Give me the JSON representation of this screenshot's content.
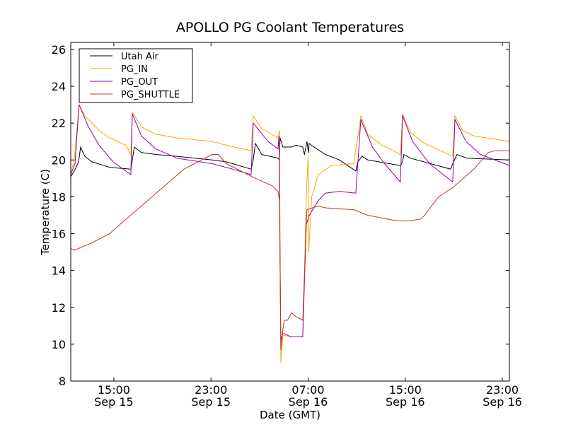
{
  "chart_data": {
    "type": "line",
    "title": "APOLLO PG Coolant Temperatures",
    "xlabel": "Date (GMT)",
    "ylabel": "Temperature (C)",
    "x_units": "hours since Sep 15 00:00 GMT",
    "xlim": [
      11.45,
      47.58
    ],
    "ylim": [
      8,
      26.38
    ],
    "grid": false,
    "legend_position": "top-left",
    "xticks": [
      {
        "value": 15,
        "line1": "15:00",
        "line2": "Sep 15"
      },
      {
        "value": 23,
        "line1": "23:00",
        "line2": "Sep 15"
      },
      {
        "value": 31,
        "line1": "07:00",
        "line2": "Sep 16"
      },
      {
        "value": 39,
        "line1": "15:00",
        "line2": "Sep 16"
      },
      {
        "value": 47,
        "line1": "23:00",
        "line2": "Sep 16"
      }
    ],
    "yticks": [
      8,
      10,
      12,
      14,
      16,
      18,
      20,
      22,
      24,
      26
    ],
    "series": [
      {
        "name": "Utah Air",
        "color": "#000000",
        "points": [
          [
            11.45,
            19.1
          ],
          [
            11.74,
            19.4
          ],
          [
            12.03,
            19.8
          ],
          [
            12.14,
            20.1
          ],
          [
            12.26,
            20.7
          ],
          [
            12.61,
            20.2
          ],
          [
            13.19,
            19.9
          ],
          [
            14.65,
            19.6
          ],
          [
            16.4,
            19.5
          ],
          [
            16.52,
            20.0
          ],
          [
            16.69,
            20.7
          ],
          [
            17.27,
            20.4
          ],
          [
            18.44,
            20.3
          ],
          [
            20.19,
            20.2
          ],
          [
            23.1,
            20.0
          ],
          [
            24.27,
            19.9
          ],
          [
            26.31,
            19.5
          ],
          [
            26.48,
            20.0
          ],
          [
            26.66,
            20.9
          ],
          [
            27.18,
            20.3
          ],
          [
            28.52,
            20.1
          ],
          [
            28.64,
            20.0
          ],
          [
            28.69,
            21.2
          ],
          [
            28.92,
            20.7
          ],
          [
            29.6,
            20.7
          ],
          [
            30.0,
            20.8
          ],
          [
            30.56,
            20.7
          ],
          [
            30.7,
            20.3
          ],
          [
            30.91,
            21.0
          ],
          [
            31.03,
            20.4
          ],
          [
            31.08,
            20.9
          ],
          [
            31.26,
            20.8
          ],
          [
            32.42,
            20.3
          ],
          [
            33.59,
            20.0
          ],
          [
            34.93,
            19.4
          ],
          [
            35.1,
            19.9
          ],
          [
            35.45,
            20.2
          ],
          [
            35.92,
            20.0
          ],
          [
            38.6,
            19.7
          ],
          [
            38.78,
            19.9
          ],
          [
            38.89,
            20.3
          ],
          [
            39.42,
            20.1
          ],
          [
            42.74,
            19.5
          ],
          [
            42.91,
            19.8
          ],
          [
            43.26,
            20.3
          ],
          [
            44.08,
            20.1
          ],
          [
            47.58,
            20.0
          ]
        ]
      },
      {
        "name": "PG_IN",
        "color": "#ffa500",
        "points": [
          [
            11.45,
            19.3
          ],
          [
            11.74,
            20.0
          ],
          [
            12.14,
            23.0
          ],
          [
            12.6,
            22.4
          ],
          [
            13.19,
            22.0
          ],
          [
            13.78,
            21.6
          ],
          [
            14.65,
            21.2
          ],
          [
            16.0,
            20.8
          ],
          [
            16.4,
            20.3
          ],
          [
            16.52,
            22.6
          ],
          [
            17.27,
            21.8
          ],
          [
            18.44,
            21.4
          ],
          [
            20.19,
            21.2
          ],
          [
            23.1,
            21.0
          ],
          [
            24.27,
            20.8
          ],
          [
            26.31,
            20.5
          ],
          [
            26.48,
            22.4
          ],
          [
            27.18,
            21.7
          ],
          [
            28.52,
            21.2
          ],
          [
            28.64,
            21.6
          ],
          [
            28.75,
            9.0
          ],
          [
            28.92,
            10.5
          ],
          [
            29.6,
            10.4
          ],
          [
            30.56,
            10.4
          ],
          [
            30.85,
            18.0
          ],
          [
            31.0,
            20.2
          ],
          [
            31.05,
            15.0
          ],
          [
            31.3,
            18.0
          ],
          [
            31.84,
            19.2
          ],
          [
            32.9,
            19.7
          ],
          [
            34.76,
            19.8
          ],
          [
            35.34,
            22.4
          ],
          [
            35.92,
            21.4
          ],
          [
            37.09,
            20.8
          ],
          [
            38.6,
            20.3
          ],
          [
            38.78,
            22.5
          ],
          [
            39.42,
            21.5
          ],
          [
            40.58,
            20.9
          ],
          [
            42.91,
            20.2
          ],
          [
            43.09,
            22.4
          ],
          [
            43.7,
            21.6
          ],
          [
            44.66,
            21.3
          ],
          [
            47.58,
            21.0
          ]
        ]
      },
      {
        "name": "PG_OUT",
        "color": "#9400a0",
        "points": [
          [
            11.45,
            19.2
          ],
          [
            11.8,
            19.8
          ],
          [
            12.14,
            23.0
          ],
          [
            12.9,
            21.8
          ],
          [
            13.78,
            20.8
          ],
          [
            14.94,
            19.9
          ],
          [
            16.4,
            19.2
          ],
          [
            16.52,
            22.5
          ],
          [
            17.27,
            21.3
          ],
          [
            18.44,
            20.6
          ],
          [
            20.19,
            20.1
          ],
          [
            23.1,
            19.8
          ],
          [
            24.8,
            19.5
          ],
          [
            26.31,
            19.2
          ],
          [
            26.48,
            22.0
          ],
          [
            27.7,
            21.0
          ],
          [
            28.52,
            20.6
          ],
          [
            28.6,
            21.3
          ],
          [
            28.75,
            10.2
          ],
          [
            28.92,
            10.6
          ],
          [
            29.6,
            10.4
          ],
          [
            30.56,
            10.4
          ],
          [
            30.85,
            16.5
          ],
          [
            31.1,
            17.0
          ],
          [
            31.84,
            17.8
          ],
          [
            32.42,
            18.2
          ],
          [
            33.59,
            18.3
          ],
          [
            34.93,
            18.2
          ],
          [
            35.34,
            22.2
          ],
          [
            36.3,
            20.7
          ],
          [
            37.3,
            19.8
          ],
          [
            38.6,
            18.8
          ],
          [
            38.78,
            22.4
          ],
          [
            39.6,
            21.0
          ],
          [
            41.0,
            19.8
          ],
          [
            42.91,
            18.8
          ],
          [
            43.09,
            22.2
          ],
          [
            44.0,
            21.0
          ],
          [
            45.2,
            20.3
          ],
          [
            47.58,
            19.7
          ]
        ]
      },
      {
        "name": "PG_SHUTTLE",
        "color": "#c0392b",
        "points": [
          [
            11.45,
            15.2
          ],
          [
            11.74,
            15.1
          ],
          [
            13.19,
            15.5
          ],
          [
            14.65,
            16.0
          ],
          [
            15.5,
            16.5
          ],
          [
            17.27,
            17.5
          ],
          [
            20.77,
            19.5
          ],
          [
            23.1,
            20.3
          ],
          [
            23.6,
            20.3
          ],
          [
            24.27,
            19.8
          ],
          [
            26.66,
            19.0
          ],
          [
            28.05,
            18.6
          ],
          [
            28.52,
            18.3
          ],
          [
            28.64,
            17.8
          ],
          [
            28.75,
            9.7
          ],
          [
            28.92,
            10.8
          ],
          [
            29.04,
            11.3
          ],
          [
            29.3,
            11.3
          ],
          [
            29.63,
            11.7
          ],
          [
            30.0,
            11.5
          ],
          [
            30.56,
            11.3
          ],
          [
            30.91,
            17.3
          ],
          [
            31.84,
            17.5
          ],
          [
            32.42,
            17.4
          ],
          [
            34.76,
            17.3
          ],
          [
            35.92,
            17.0
          ],
          [
            38.25,
            16.7
          ],
          [
            39.4,
            16.7
          ],
          [
            40.29,
            16.8
          ],
          [
            40.6,
            17.0
          ],
          [
            41.16,
            17.5
          ],
          [
            41.75,
            18.0
          ],
          [
            42.91,
            18.5
          ],
          [
            44.66,
            19.5
          ],
          [
            45.83,
            20.4
          ],
          [
            46.41,
            20.5
          ],
          [
            47.58,
            20.5
          ]
        ]
      }
    ]
  }
}
